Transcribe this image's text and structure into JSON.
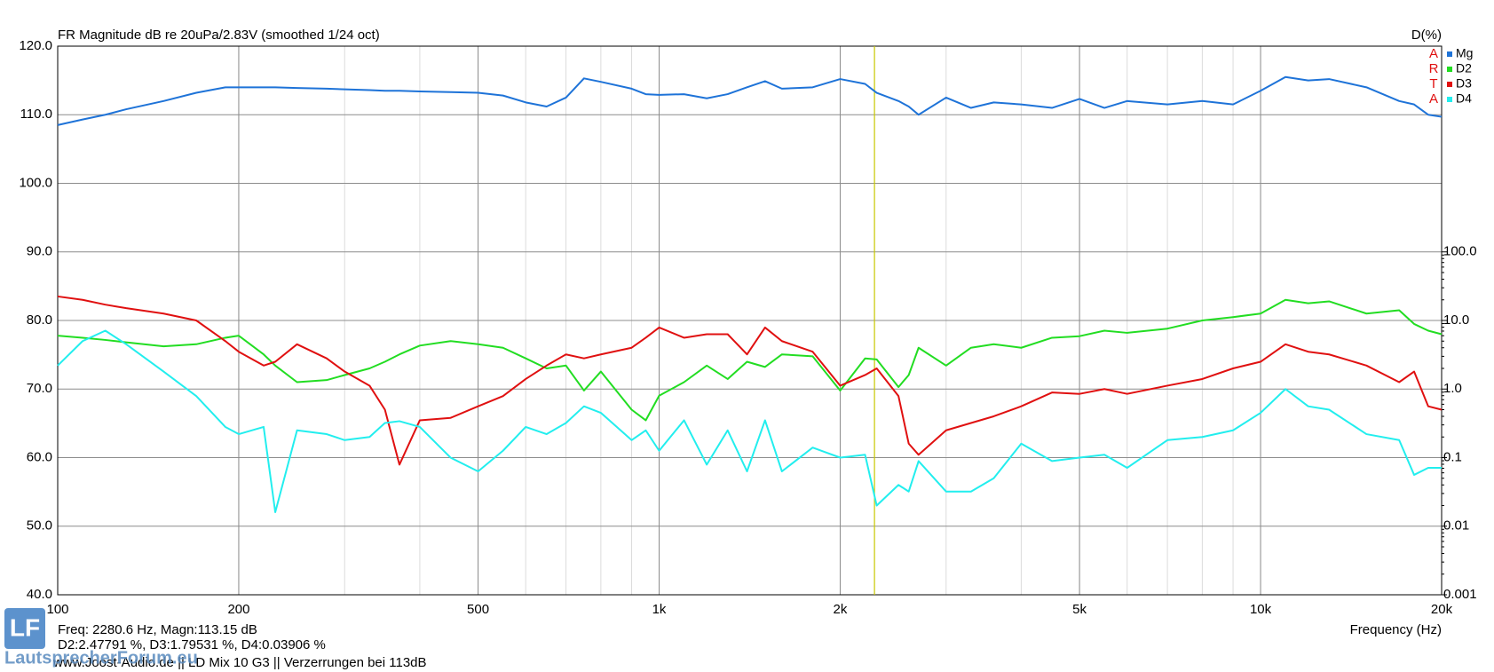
{
  "chart_data": {
    "type": "line",
    "title": "FR Magnitude dB re 20uPa/2.83V (smoothed 1/24 oct)",
    "y2_label": "D(%)",
    "x_label": "Frequency (Hz)",
    "badge": [
      "A",
      "R",
      "T",
      "A"
    ],
    "info": [
      "Freq: 2280.6 Hz, Magn:113.15 dB",
      "D2:2.47791 %, D3:1.79531 %, D4:0.03906 %",
      "www.Joost-Audio.de || LD Mix 10 G3 || Verzerrungen bei 113dB"
    ],
    "watermark": {
      "logo": "LF",
      "text": "LautsprecherForum.eu"
    },
    "x_log": true,
    "y2_log": true,
    "grid": true,
    "minor_grid": true,
    "legend": "top-right",
    "cursor": {
      "x": 2280.6,
      "color": "#c8c800"
    },
    "xlim": [
      100,
      20000
    ],
    "xticks": [
      100,
      200,
      500,
      {
        "value": 1000,
        "label": "1k"
      },
      {
        "value": 2000,
        "label": "2k"
      },
      {
        "value": 5000,
        "label": "5k"
      },
      {
        "value": 10000,
        "label": "10k"
      },
      {
        "value": 20000,
        "label": "20k"
      }
    ],
    "ylim": [
      40,
      120
    ],
    "yticks": [
      {
        "value": 40,
        "label": "40.0"
      },
      {
        "value": 50,
        "label": "50.0"
      },
      {
        "value": 60,
        "label": "60.0"
      },
      {
        "value": 70,
        "label": "70.0"
      },
      {
        "value": 80,
        "label": "80.0"
      },
      {
        "value": 90,
        "label": "90.0"
      },
      {
        "value": 100,
        "label": "100.0"
      },
      {
        "value": 110,
        "label": "110.0"
      },
      {
        "value": 120,
        "label": "120.0"
      }
    ],
    "y2lim": [
      0.001,
      100000
    ],
    "y2ticks": [
      0.001,
      0.01,
      0.1,
      {
        "value": 1,
        "label": "1.0"
      },
      {
        "value": 10,
        "label": "10.0"
      },
      {
        "value": 100,
        "label": "100.0"
      }
    ],
    "x": [
      100,
      110,
      120,
      130,
      150,
      170,
      190,
      200,
      220,
      230,
      250,
      280,
      300,
      330,
      350,
      370,
      400,
      450,
      500,
      550,
      600,
      650,
      700,
      750,
      800,
      900,
      950,
      1000,
      1100,
      1200,
      1300,
      1400,
      1500,
      1600,
      1800,
      2000,
      2200,
      2300,
      2500,
      2600,
      2700,
      3000,
      3300,
      3600,
      4000,
      4500,
      5000,
      5500,
      6000,
      7000,
      8000,
      9000,
      10000,
      11000,
      12000,
      13000,
      15000,
      17000,
      18000,
      19000,
      20000
    ],
    "series": [
      {
        "name": "Mg",
        "color": "#1e73d8",
        "axis": "y",
        "values": [
          108.5,
          109.3,
          110,
          110.8,
          112,
          113.2,
          114,
          114,
          114,
          114,
          113.9,
          113.8,
          113.7,
          113.6,
          113.5,
          113.5,
          113.4,
          113.3,
          113.2,
          112.8,
          111.8,
          111.2,
          112.5,
          115.3,
          114.8,
          113.8,
          113,
          112.9,
          113,
          112.4,
          113,
          114,
          114.9,
          113.8,
          114,
          115.2,
          114.5,
          113.2,
          112,
          111.2,
          110,
          112.5,
          111,
          111.8,
          111.5,
          111,
          112.3,
          111,
          112,
          111.5,
          112,
          111.5,
          113.5,
          115.5,
          115,
          115.2,
          114,
          112,
          111.5,
          110,
          109.7
        ]
      },
      {
        "name": "D2",
        "color": "#22dd22",
        "axis": "y2",
        "values": [
          6.0,
          5.6,
          5.2,
          4.8,
          4.2,
          4.5,
          5.6,
          6.0,
          3.2,
          2.2,
          1.26,
          1.35,
          1.6,
          2.0,
          2.5,
          3.2,
          4.3,
          5.0,
          4.5,
          4.0,
          2.8,
          2.0,
          2.2,
          0.95,
          1.8,
          0.5,
          0.35,
          0.8,
          1.26,
          2.2,
          1.4,
          2.5,
          2.1,
          3.2,
          3.0,
          0.95,
          2.8,
          2.7,
          1.07,
          1.6,
          4.0,
          2.2,
          4.0,
          4.5,
          4.0,
          5.6,
          5.9,
          7.1,
          6.6,
          7.6,
          10,
          11.2,
          12.6,
          20,
          17.8,
          19,
          12.6,
          14.1,
          8.9,
          7.1,
          6.3
        ]
      },
      {
        "name": "D3",
        "color": "#e01010",
        "axis": "y2",
        "values": [
          22.4,
          20,
          17,
          15.1,
          12.6,
          10,
          5.0,
          3.5,
          2.2,
          2.5,
          4.5,
          2.8,
          1.8,
          1.12,
          0.5,
          0.079,
          0.35,
          0.38,
          0.56,
          0.79,
          1.4,
          2.2,
          3.2,
          2.8,
          3.2,
          4.0,
          5.6,
          7.9,
          5.6,
          6.3,
          6.3,
          3.2,
          7.9,
          5.0,
          3.5,
          1.12,
          1.6,
          2.0,
          0.79,
          0.16,
          0.11,
          0.25,
          0.32,
          0.4,
          0.56,
          0.89,
          0.85,
          1.0,
          0.85,
          1.12,
          1.4,
          2.0,
          2.5,
          4.5,
          3.5,
          3.2,
          2.2,
          1.26,
          1.8,
          0.56,
          0.5
        ]
      },
      {
        "name": "D4",
        "color": "#22eeee",
        "axis": "y2",
        "values": [
          2.2,
          5.0,
          7.1,
          4.5,
          1.8,
          0.79,
          0.28,
          0.22,
          0.28,
          0.016,
          0.25,
          0.22,
          0.18,
          0.2,
          0.32,
          0.34,
          0.28,
          0.1,
          0.063,
          0.126,
          0.28,
          0.22,
          0.32,
          0.56,
          0.45,
          0.18,
          0.25,
          0.126,
          0.35,
          0.079,
          0.25,
          0.063,
          0.35,
          0.063,
          0.14,
          0.1,
          0.11,
          0.02,
          0.04,
          0.032,
          0.089,
          0.032,
          0.032,
          0.05,
          0.16,
          0.089,
          0.1,
          0.11,
          0.071,
          0.18,
          0.2,
          0.25,
          0.45,
          1.0,
          0.56,
          0.5,
          0.22,
          0.18,
          0.056,
          0.071,
          0.071
        ]
      }
    ]
  }
}
